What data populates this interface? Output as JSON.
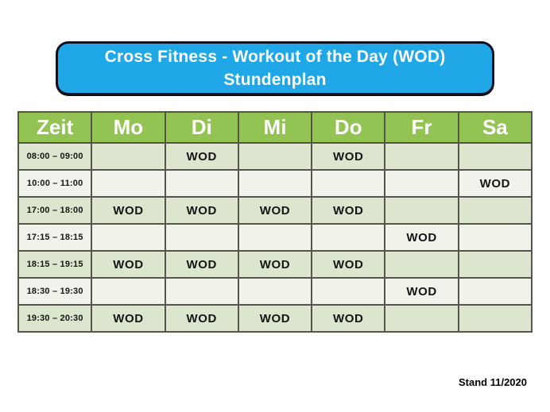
{
  "title": {
    "line1": "Cross Fitness - Workout of the Day (WOD)",
    "line2": "Stundenplan"
  },
  "table": {
    "columns": [
      "Zeit",
      "Mo",
      "Di",
      "Mi",
      "Do",
      "Fr",
      "Sa"
    ],
    "rows": [
      {
        "time": "08:00 – 09:00",
        "cells": [
          "",
          "WOD",
          "",
          "WOD",
          "",
          ""
        ]
      },
      {
        "time": "10:00 – 11:00",
        "cells": [
          "",
          "",
          "",
          "",
          "",
          "WOD"
        ]
      },
      {
        "time": "17:00 – 18:00",
        "cells": [
          "WOD",
          "WOD",
          "WOD",
          "WOD",
          "",
          ""
        ]
      },
      {
        "time": "17:15 – 18:15",
        "cells": [
          "",
          "",
          "",
          "",
          "WOD",
          ""
        ]
      },
      {
        "time": "18:15 – 19:15",
        "cells": [
          "WOD",
          "WOD",
          "WOD",
          "WOD",
          "",
          ""
        ]
      },
      {
        "time": "18:30 – 19:30",
        "cells": [
          "",
          "",
          "",
          "",
          "WOD",
          ""
        ]
      },
      {
        "time": "19:30 – 20:30",
        "cells": [
          "WOD",
          "WOD",
          "WOD",
          "WOD",
          "",
          ""
        ]
      }
    ]
  },
  "footer": {
    "stand": "Stand 11/2020"
  },
  "colors": {
    "header_blue": "#1fa7e8",
    "header_green": "#92c353",
    "row_dark": "#dce6cf",
    "row_light": "#f0f3ea",
    "grid": "#55554c",
    "ink": "#151515",
    "white": "#ffffff"
  }
}
